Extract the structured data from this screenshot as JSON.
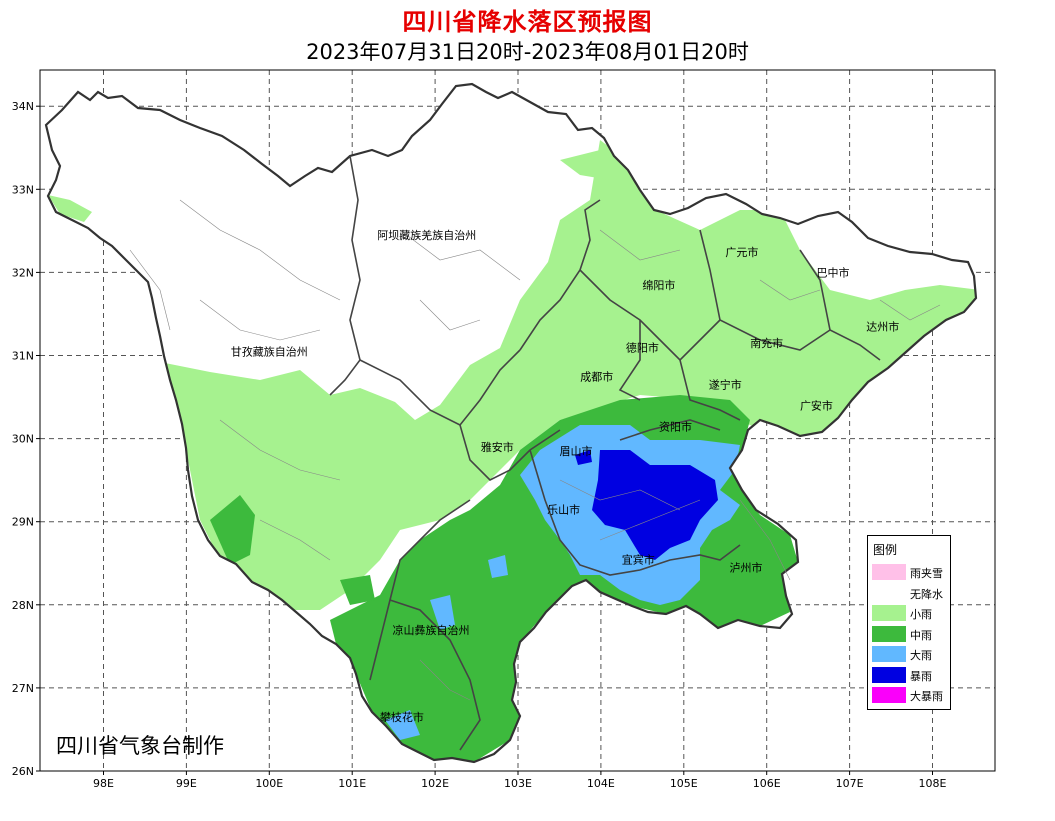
{
  "title": "四川省降水落区预报图",
  "subtitle": "2023年07月31日20时-2023年08月01日20时",
  "credit": "四川省气象台制作",
  "axes": {
    "lat_labels": [
      "34N",
      "33N",
      "32N",
      "31N",
      "30N",
      "29N",
      "28N",
      "27N",
      "26N"
    ],
    "lat_values": [
      34,
      33,
      32,
      31,
      30,
      29,
      28,
      27,
      26
    ],
    "lon_labels": [
      "98E",
      "99E",
      "100E",
      "101E",
      "102E",
      "103E",
      "104E",
      "105E",
      "106E",
      "107E",
      "108E"
    ],
    "lon_values": [
      98,
      99,
      100,
      101,
      102,
      103,
      104,
      105,
      106,
      107,
      108
    ],
    "grid": true
  },
  "cities": [
    {
      "name": "阿坝藏族羌族自治州",
      "lon": 101.9,
      "lat": 32.4
    },
    {
      "name": "甘孜藏族自治州",
      "lon": 100.0,
      "lat": 31.0
    },
    {
      "name": "广元市",
      "lon": 105.7,
      "lat": 32.2
    },
    {
      "name": "巴中市",
      "lon": 106.8,
      "lat": 31.95
    },
    {
      "name": "绵阳市",
      "lon": 104.7,
      "lat": 31.8
    },
    {
      "name": "达州市",
      "lon": 107.4,
      "lat": 31.3
    },
    {
      "name": "德阳市",
      "lon": 104.5,
      "lat": 31.05
    },
    {
      "name": "南充市",
      "lon": 106.0,
      "lat": 31.1
    },
    {
      "name": "成都市",
      "lon": 103.95,
      "lat": 30.7
    },
    {
      "name": "遂宁市",
      "lon": 105.5,
      "lat": 30.6
    },
    {
      "name": "广安市",
      "lon": 106.6,
      "lat": 30.35
    },
    {
      "name": "资阳市",
      "lon": 104.9,
      "lat": 30.1
    },
    {
      "name": "雅安市",
      "lon": 102.75,
      "lat": 29.85
    },
    {
      "name": "眉山市",
      "lon": 103.7,
      "lat": 29.8
    },
    {
      "name": "乐山市",
      "lon": 103.55,
      "lat": 29.1
    },
    {
      "name": "宜宾市",
      "lon": 104.45,
      "lat": 28.5
    },
    {
      "name": "泸州市",
      "lon": 105.75,
      "lat": 28.4
    },
    {
      "name": "凉山彝族自治州",
      "lon": 101.95,
      "lat": 27.65
    },
    {
      "name": "攀枝花市",
      "lon": 101.6,
      "lat": 26.6
    }
  ],
  "legend": {
    "title": "图例",
    "items": [
      {
        "label": "雨夹雪",
        "color": "#ffc0e8"
      },
      {
        "label": "无降水",
        "color": "#ffffff"
      },
      {
        "label": "小雨",
        "color": "#a6f28f"
      },
      {
        "label": "中雨",
        "color": "#3dba3d"
      },
      {
        "label": "大雨",
        "color": "#61b8ff"
      },
      {
        "label": "暴雨",
        "color": "#0000e1"
      },
      {
        "label": "大暴雨",
        "color": "#fa00fa"
      }
    ]
  }
}
